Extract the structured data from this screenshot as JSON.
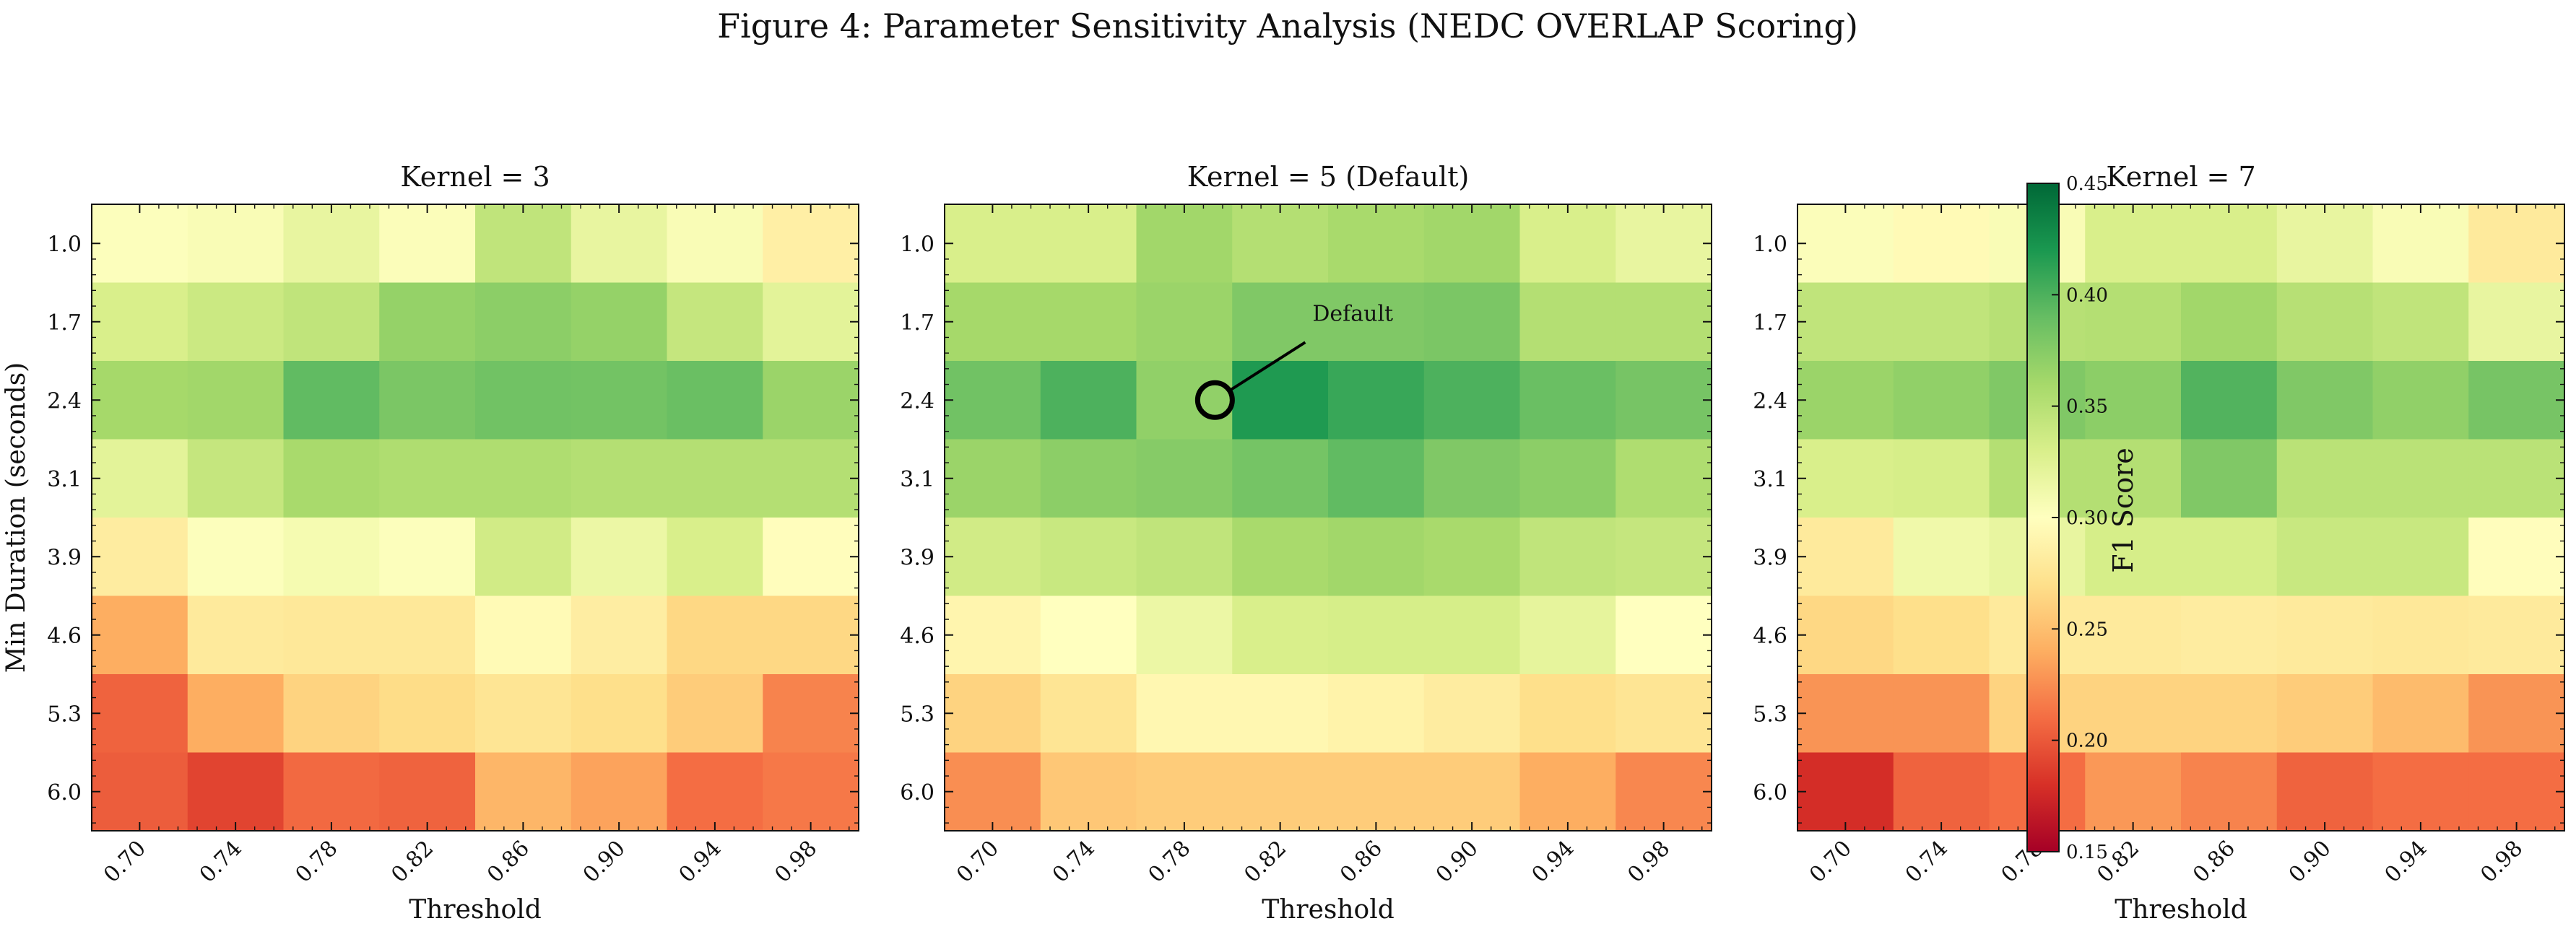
{
  "figure": {
    "title": "Figure 4: Parameter Sensitivity Analysis (NEDC OVERLAP Scoring)"
  },
  "chart_data": [
    {
      "type": "heatmap",
      "title": "Kernel = 3",
      "xlabel": "Threshold",
      "ylabel": "Min Duration (seconds)",
      "x_categories": [
        "0.70",
        "0.74",
        "0.78",
        "0.82",
        "0.86",
        "0.90",
        "0.94",
        "0.98"
      ],
      "y_categories": [
        "1.0",
        "1.7",
        "2.4",
        "3.1",
        "3.9",
        "4.6",
        "5.3",
        "6.0"
      ],
      "values": [
        [
          0.302,
          0.305,
          0.318,
          0.303,
          0.345,
          0.318,
          0.305,
          0.285
        ],
        [
          0.33,
          0.338,
          0.345,
          0.368,
          0.372,
          0.368,
          0.342,
          0.322
        ],
        [
          0.36,
          0.362,
          0.392,
          0.38,
          0.385,
          0.384,
          0.388,
          0.365
        ],
        [
          0.322,
          0.342,
          0.358,
          0.355,
          0.355,
          0.352,
          0.352,
          0.352
        ],
        [
          0.282,
          0.302,
          0.308,
          0.302,
          0.335,
          0.315,
          0.33,
          0.298
        ],
        [
          0.24,
          0.28,
          0.278,
          0.278,
          0.295,
          0.283,
          0.265,
          0.265
        ],
        [
          0.205,
          0.24,
          0.262,
          0.268,
          0.275,
          0.27,
          0.258,
          0.22
        ],
        [
          0.202,
          0.19,
          0.208,
          0.205,
          0.245,
          0.235,
          0.21,
          0.215
        ]
      ]
    },
    {
      "type": "heatmap",
      "title": "Kernel = 5 (Default)",
      "xlabel": "Threshold",
      "ylabel": "",
      "x_categories": [
        "0.70",
        "0.74",
        "0.78",
        "0.82",
        "0.86",
        "0.90",
        "0.94",
        "0.98"
      ],
      "y_categories": [
        "1.0",
        "1.7",
        "2.4",
        "3.1",
        "3.9",
        "4.6",
        "5.3",
        "6.0"
      ],
      "values": [
        [
          0.33,
          0.33,
          0.362,
          0.352,
          0.358,
          0.362,
          0.33,
          0.318
        ],
        [
          0.36,
          0.36,
          0.365,
          0.378,
          0.378,
          0.38,
          0.352,
          0.352
        ],
        [
          0.385,
          0.4,
          0.37,
          0.418,
          0.408,
          0.4,
          0.388,
          0.382
        ],
        [
          0.365,
          0.372,
          0.375,
          0.383,
          0.392,
          0.378,
          0.372,
          0.355
        ],
        [
          0.335,
          0.34,
          0.345,
          0.358,
          0.362,
          0.358,
          0.345,
          0.342
        ],
        [
          0.29,
          0.3,
          0.315,
          0.33,
          0.332,
          0.332,
          0.32,
          0.3
        ],
        [
          0.262,
          0.275,
          0.292,
          0.292,
          0.288,
          0.282,
          0.27,
          0.275
        ],
        [
          0.225,
          0.255,
          0.258,
          0.258,
          0.258,
          0.258,
          0.24,
          0.222
        ]
      ],
      "annotations": [
        {
          "text": "Default",
          "x": "0.78",
          "y": "2.4"
        }
      ]
    },
    {
      "type": "heatmap",
      "title": "Kernel = 7",
      "xlabel": "Threshold",
      "ylabel": "",
      "x_categories": [
        "0.70",
        "0.74",
        "0.78",
        "0.82",
        "0.86",
        "0.90",
        "0.94",
        "0.98"
      ],
      "y_categories": [
        "1.0",
        "1.7",
        "2.4",
        "3.1",
        "3.9",
        "4.6",
        "5.3",
        "6.0"
      ],
      "values": [
        [
          0.303,
          0.295,
          0.305,
          0.33,
          0.33,
          0.318,
          0.305,
          0.28
        ],
        [
          0.345,
          0.345,
          0.35,
          0.352,
          0.362,
          0.35,
          0.345,
          0.318
        ],
        [
          0.365,
          0.37,
          0.378,
          0.372,
          0.398,
          0.378,
          0.37,
          0.382
        ],
        [
          0.33,
          0.332,
          0.352,
          0.352,
          0.378,
          0.348,
          0.348,
          0.348
        ],
        [
          0.28,
          0.312,
          0.318,
          0.332,
          0.332,
          0.34,
          0.34,
          0.298
        ],
        [
          0.265,
          0.27,
          0.28,
          0.28,
          0.282,
          0.28,
          0.278,
          0.28
        ],
        [
          0.228,
          0.228,
          0.262,
          0.262,
          0.262,
          0.258,
          0.248,
          0.228
        ],
        [
          0.178,
          0.205,
          0.21,
          0.23,
          0.22,
          0.205,
          0.21,
          0.21
        ]
      ]
    }
  ],
  "colorbar": {
    "label": "F1 Score",
    "min": 0.15,
    "max": 0.45,
    "ticks": [
      "0.15",
      "0.20",
      "0.25",
      "0.30",
      "0.35",
      "0.40",
      "0.45"
    ],
    "colormap": "RdYlGn",
    "stops": [
      "#a50026",
      "#d73027",
      "#f46d43",
      "#fdae61",
      "#fee08b",
      "#ffffbf",
      "#d9ef8b",
      "#a6d96a",
      "#66bd63",
      "#1a9850",
      "#006837"
    ]
  }
}
